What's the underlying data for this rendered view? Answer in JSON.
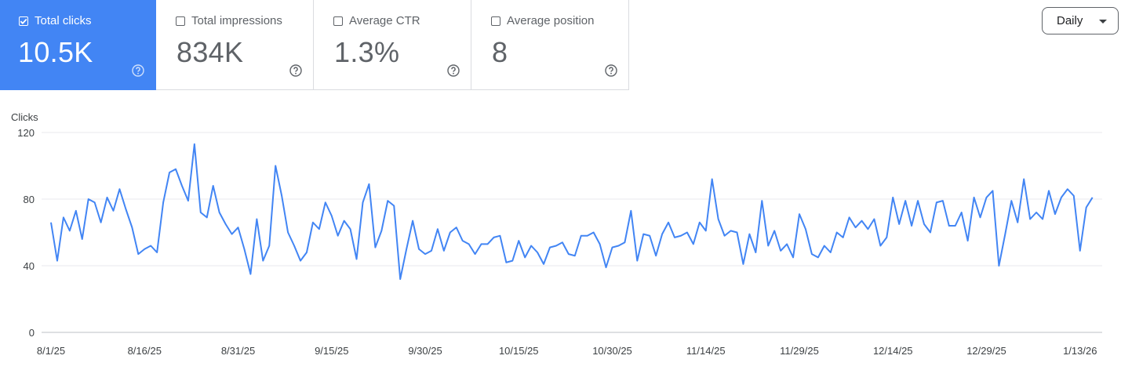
{
  "metrics": [
    {
      "label": "Total clicks",
      "value": "10.5K",
      "checked": true
    },
    {
      "label": "Total impressions",
      "value": "834K",
      "checked": false
    },
    {
      "label": "Average CTR",
      "value": "1.3%",
      "checked": false
    },
    {
      "label": "Average position",
      "value": "8",
      "checked": false
    }
  ],
  "dropdown": {
    "label": "Daily"
  },
  "colors": {
    "accent": "#4285f4",
    "line": "#4285f4",
    "grid": "#e8eaed"
  },
  "icons": {
    "checkbox": "checkbox-icon",
    "help": "help-circle-icon",
    "caret": "caret-down-icon"
  },
  "chart_data": {
    "type": "line",
    "ylabel": "Clicks",
    "ylim": [
      0,
      120
    ],
    "yticks": [
      0,
      40,
      80,
      120
    ],
    "x_start": "8/1/25",
    "x_ticks": [
      "8/1/25",
      "8/16/25",
      "8/31/25",
      "9/15/25",
      "9/30/25",
      "10/15/25",
      "10/30/25",
      "11/14/25",
      "11/29/25",
      "12/14/25",
      "12/29/25",
      "1/13/26"
    ],
    "grid": true,
    "series": [
      {
        "values": [
          66,
          43,
          69,
          61,
          73,
          56,
          80,
          78,
          66,
          81,
          73,
          86,
          74,
          63,
          47,
          50,
          52,
          48,
          78,
          96,
          98,
          88,
          79,
          113,
          72,
          69,
          88,
          72,
          65,
          59,
          63,
          50,
          35,
          68,
          43,
          52,
          100,
          82,
          60,
          52,
          43,
          48,
          66,
          62,
          78,
          70,
          58,
          67,
          62,
          44,
          78,
          89,
          51,
          61,
          79,
          76,
          32,
          50,
          67,
          50,
          47,
          49,
          62,
          49,
          60,
          63,
          55,
          53,
          47,
          53,
          53,
          57,
          58,
          42,
          43,
          55,
          45,
          52,
          48,
          41,
          51,
          52,
          54,
          47,
          46,
          58,
          58,
          60,
          53,
          39,
          51,
          52,
          54,
          73,
          43,
          59,
          58,
          46,
          59,
          66,
          57,
          58,
          60,
          53,
          66,
          61,
          92,
          68,
          58,
          61,
          60,
          41,
          59,
          48,
          79,
          52,
          61,
          49,
          53,
          45,
          71,
          62,
          47,
          45,
          52,
          48,
          60,
          57,
          69,
          63,
          67,
          62,
          68,
          52,
          57,
          81,
          65,
          79,
          64,
          79,
          65,
          60,
          78,
          79,
          64,
          64,
          72,
          55,
          81,
          69,
          81,
          85,
          40,
          59,
          79,
          66,
          92,
          68,
          72,
          68,
          85,
          71,
          81,
          86,
          82,
          49,
          75,
          81
        ]
      }
    ]
  }
}
